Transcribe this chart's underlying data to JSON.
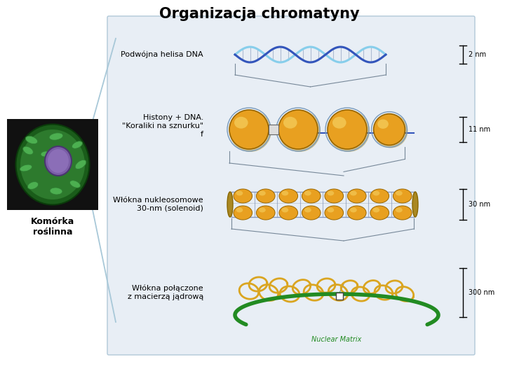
{
  "title": "Organizacja chromatyny",
  "title_fontsize": 15,
  "title_fontweight": "bold",
  "bg_color": "#ffffff",
  "panel_color": "#e8eef5",
  "panel_border": "#b0c8d8",
  "labels": [
    "Podwójna helisa DNA",
    "Histony + DNA.\n\"Koraliki na sznurku\"\nf",
    "Włókna nukleosomowe\n30-nm (solenoid)",
    "Włókna połączone\nz macierzą jądrową"
  ],
  "sizes": [
    "2 nm",
    "11 nm",
    "30 nm",
    "300 nm"
  ],
  "cell_label": "Komórka\nroślinna",
  "nuclear_matrix_label": "Nuclear Matrix",
  "dna_color_light": "#87CEEB",
  "dna_color_dark": "#3355BB",
  "histone_color": "#E8A020",
  "histone_outline": "#996600",
  "fiber_color": "#DAA520",
  "green_base_color": "#228B22",
  "connector_color": "#778899",
  "arrow_color": "#222222",
  "line_color": "#555555"
}
